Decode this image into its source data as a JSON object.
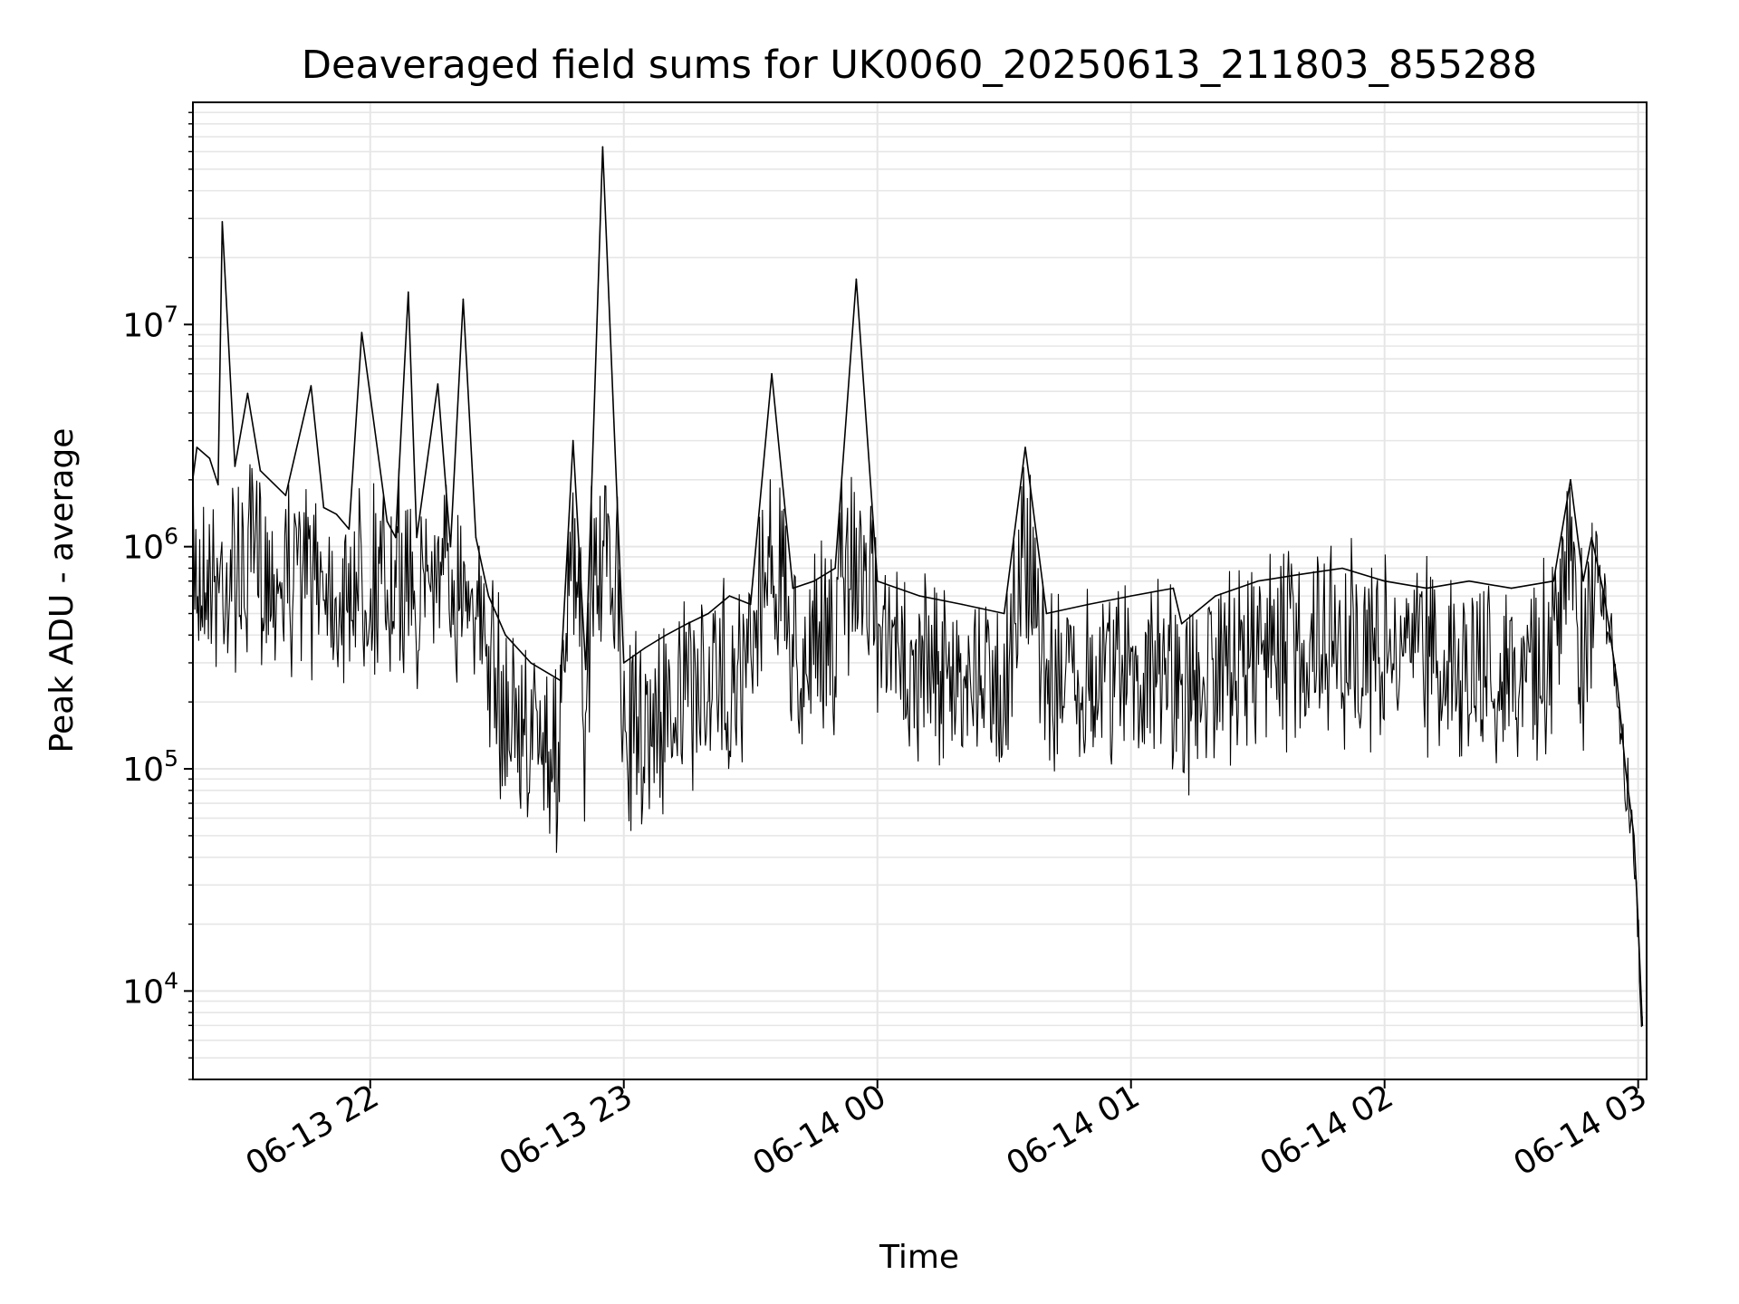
{
  "chart_data": {
    "type": "line",
    "title": "Deaveraged field sums for UK0060_20250613_211803_855288",
    "xlabel": "Time",
    "ylabel": "Peak ADU - average",
    "x_axis_type": "datetime",
    "xlim": [
      "2025-06-13 21:18:03",
      "2025-06-14 03:02:00"
    ],
    "x_ticks": [
      {
        "value": "2025-06-13 22:00",
        "label": "06-13 22"
      },
      {
        "value": "2025-06-13 23:00",
        "label": "06-13 23"
      },
      {
        "value": "2025-06-14 00:00",
        "label": "06-14 00"
      },
      {
        "value": "2025-06-14 01:00",
        "label": "06-14 01"
      },
      {
        "value": "2025-06-14 02:00",
        "label": "06-14 02"
      },
      {
        "value": "2025-06-14 03:00",
        "label": "06-14 03"
      }
    ],
    "y_scale": "log",
    "ylim": [
      4000,
      100000000
    ],
    "y_ticks": [
      {
        "value": 10000,
        "base": "10",
        "exp": "4"
      },
      {
        "value": 100000,
        "base": "10",
        "exp": "5"
      },
      {
        "value": 1000000,
        "base": "10",
        "exp": "6"
      },
      {
        "value": 10000000,
        "base": "10",
        "exp": "7"
      }
    ],
    "grid": true,
    "line_color": "#000000",
    "grid_color": "#e6e6e6",
    "series": [
      {
        "x": [
          "2025-06-13 21:18",
          "2025-06-13 21:19",
          "2025-06-13 21:22",
          "2025-06-13 21:24",
          "2025-06-13 21:25",
          "2025-06-13 21:28",
          "2025-06-13 21:31",
          "2025-06-13 21:34",
          "2025-06-13 21:40",
          "2025-06-13 21:46",
          "2025-06-13 21:49",
          "2025-06-13 21:52",
          "2025-06-13 21:55",
          "2025-06-13 21:58",
          "2025-06-13 22:04",
          "2025-06-13 22:06",
          "2025-06-13 22:09",
          "2025-06-13 22:11",
          "2025-06-13 22:16",
          "2025-06-13 22:19",
          "2025-06-13 22:22",
          "2025-06-13 22:25",
          "2025-06-13 22:28",
          "2025-06-13 22:32",
          "2025-06-13 22:38",
          "2025-06-13 22:45",
          "2025-06-13 22:48",
          "2025-06-13 22:51",
          "2025-06-13 22:55",
          "2025-06-13 23:00",
          "2025-06-13 23:05",
          "2025-06-13 23:10",
          "2025-06-13 23:15",
          "2025-06-13 23:20",
          "2025-06-13 23:25",
          "2025-06-13 23:30",
          "2025-06-13 23:35",
          "2025-06-13 23:40",
          "2025-06-13 23:45",
          "2025-06-13 23:50",
          "2025-06-13 23:55",
          "2025-06-14 00:00",
          "2025-06-14 00:10",
          "2025-06-14 00:20",
          "2025-06-14 00:30",
          "2025-06-14 00:35",
          "2025-06-14 00:40",
          "2025-06-14 00:50",
          "2025-06-14 01:00",
          "2025-06-14 01:10",
          "2025-06-14 01:12",
          "2025-06-14 01:20",
          "2025-06-14 01:30",
          "2025-06-14 01:40",
          "2025-06-14 01:50",
          "2025-06-14 02:00",
          "2025-06-14 02:10",
          "2025-06-14 02:20",
          "2025-06-14 02:30",
          "2025-06-14 02:40",
          "2025-06-14 02:44",
          "2025-06-14 02:47",
          "2025-06-14 02:49",
          "2025-06-14 02:52",
          "2025-06-14 02:55",
          "2025-06-14 02:57",
          "2025-06-14 02:59",
          "2025-06-14 03:00",
          "2025-06-14 03:01"
        ],
        "y": [
          2000000,
          2800000,
          2500000,
          1900000,
          29000000,
          2300000,
          4900000,
          2200000,
          1700000,
          5300000,
          1500000,
          1400000,
          1200000,
          9200000,
          1300000,
          1100000,
          14000000,
          1100000,
          5400000,
          1000000,
          13000000,
          1100000,
          600000,
          400000,
          300000,
          250000,
          3000000,
          280000,
          63000000,
          300000,
          350000,
          400000,
          450000,
          500000,
          600000,
          550000,
          6000000,
          650000,
          700000,
          800000,
          16000000,
          700000,
          600000,
          550000,
          500000,
          2800000,
          500000,
          550000,
          600000,
          650000,
          450000,
          600000,
          700000,
          750000,
          800000,
          700000,
          650000,
          700000,
          650000,
          700000,
          2000000,
          700000,
          1100000,
          600000,
          250000,
          100000,
          50000,
          20000,
          7000
        ]
      }
    ]
  }
}
